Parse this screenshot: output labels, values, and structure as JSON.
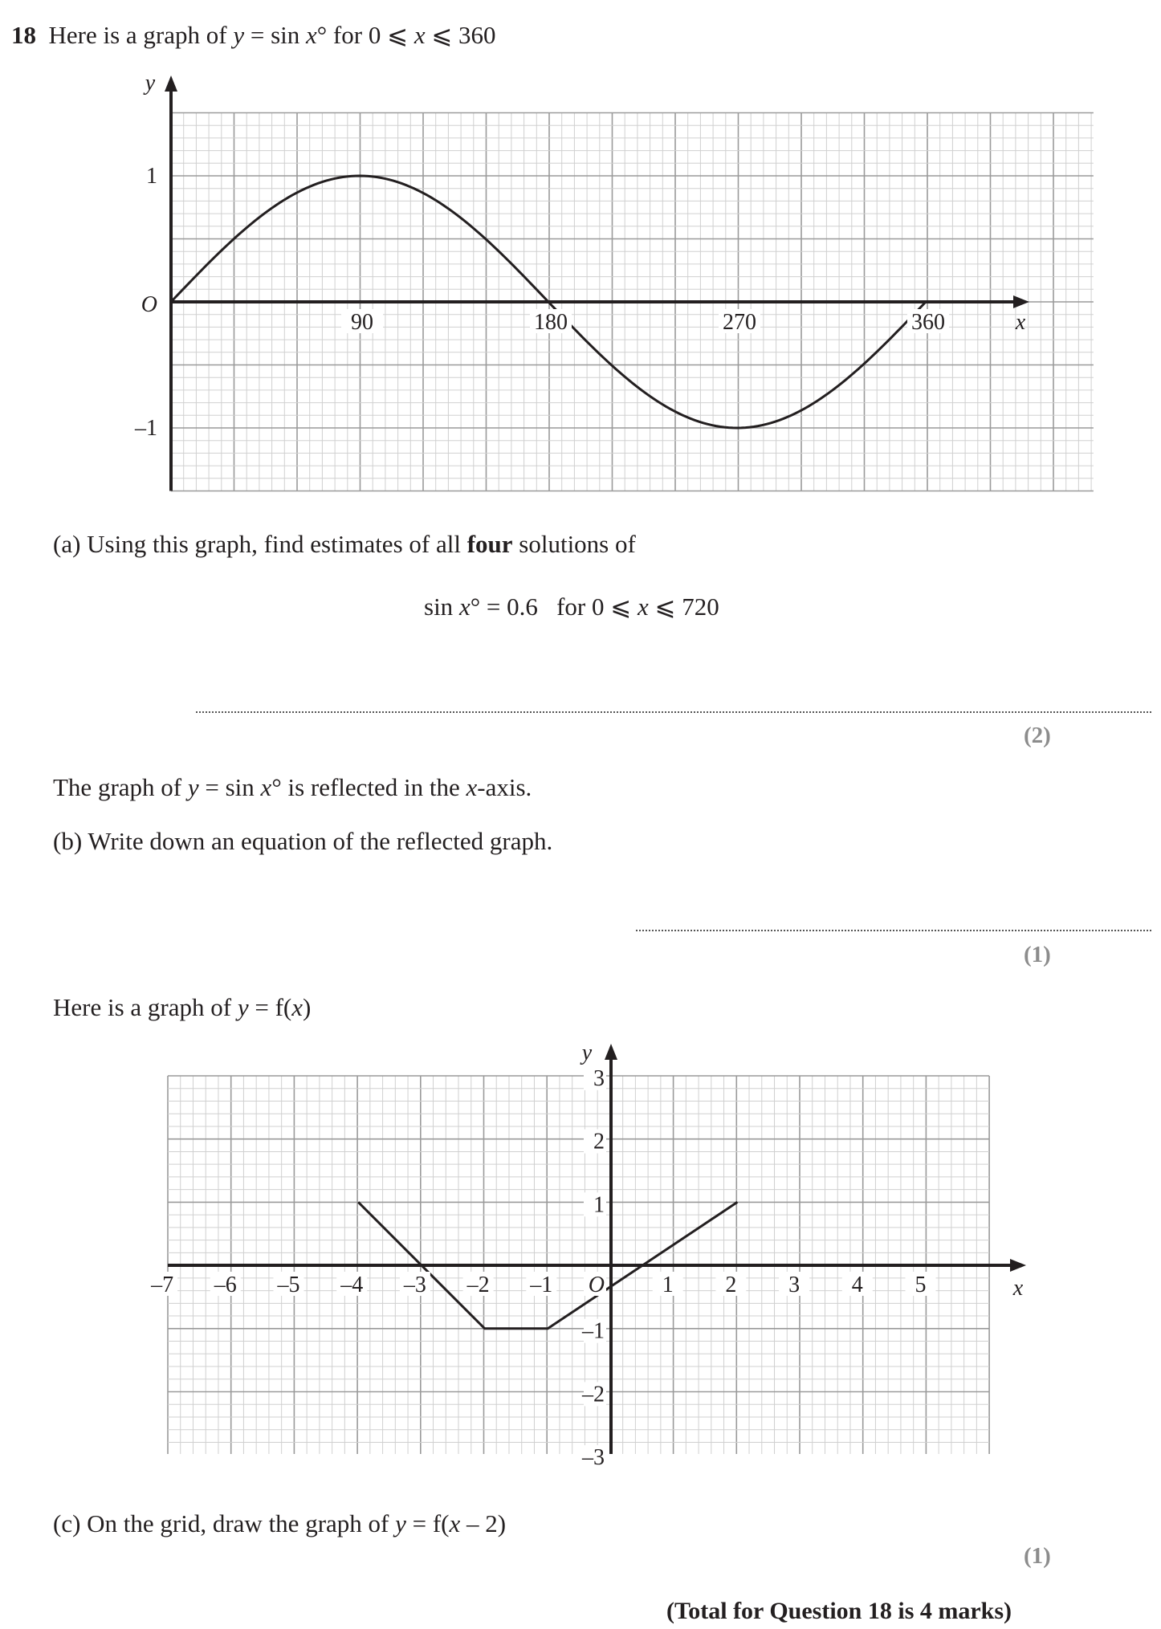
{
  "question": {
    "number": "18",
    "intro": {
      "pre": "Here is a graph of ",
      "y": "y",
      "mid": " = sin ",
      "x": "x",
      "post": "° for 0 ⩽ ",
      "x2": "x",
      "end": " ⩽ 360"
    }
  },
  "part_a": {
    "prefix": "(a) Using this graph, find estimates of all ",
    "bold": "four",
    "suffix": " solutions of",
    "eq_pre": "sin ",
    "eq_x": "x",
    "eq_mid": "° = 0.6   for 0 ⩽ ",
    "eq_x2": "x",
    "eq_end": " ⩽ 720",
    "marks": "(2)"
  },
  "reflect_statement": {
    "pre": "The graph of ",
    "y": "y",
    "mid": " = sin ",
    "x": "x",
    "mid2": "° is reflected in the ",
    "x2": "x",
    "end": "-axis."
  },
  "part_b": {
    "text": "(b) Write down an equation of the reflected graph.",
    "marks": "(1)"
  },
  "fx_intro": {
    "pre": "Here is a graph of ",
    "y": "y",
    "mid": " = f(",
    "x": "x",
    "end": ")"
  },
  "part_c": {
    "pre": "(c) On the grid, draw the graph of ",
    "y": "y",
    "mid": " = f(",
    "x": "x",
    "end": " – 2)",
    "marks": "(1)"
  },
  "total": "(Total for Question 18 is 4 marks)",
  "chart_data": [
    {
      "type": "line",
      "function": "y = sin x°",
      "x": [
        0,
        30,
        60,
        90,
        120,
        150,
        180,
        210,
        240,
        270,
        300,
        330,
        360
      ],
      "series": [
        {
          "values": [
            0,
            0.5,
            0.866,
            1,
            0.866,
            0.5,
            0,
            -0.5,
            -0.866,
            -1,
            -0.866,
            -0.5,
            0
          ]
        }
      ],
      "xlabel": "x",
      "ylabel": "y",
      "x_ticks": [
        "90",
        "180",
        "270",
        "360"
      ],
      "y_ticks": [
        "1",
        "–1"
      ],
      "origin_label": "O",
      "xlim": [
        0,
        440
      ],
      "ylim": [
        -1.5,
        1.5
      ],
      "grid": true
    },
    {
      "type": "line",
      "function": "y = f(x)",
      "x": [
        -4,
        -2,
        -1,
        2
      ],
      "series": [
        {
          "values": [
            1,
            -1,
            -1,
            1
          ]
        }
      ],
      "xlabel": "x",
      "ylabel": "y",
      "x_ticks": [
        "–7",
        "–6",
        "–5",
        "–4",
        "–3",
        "–2",
        "–1",
        "1",
        "2",
        "3",
        "4",
        "5"
      ],
      "y_ticks": [
        "3",
        "2",
        "1",
        "–1",
        "–2",
        "–3"
      ],
      "origin_label": "O",
      "xlim": [
        -7,
        6
      ],
      "ylim": [
        -3,
        3
      ],
      "grid": true
    }
  ]
}
